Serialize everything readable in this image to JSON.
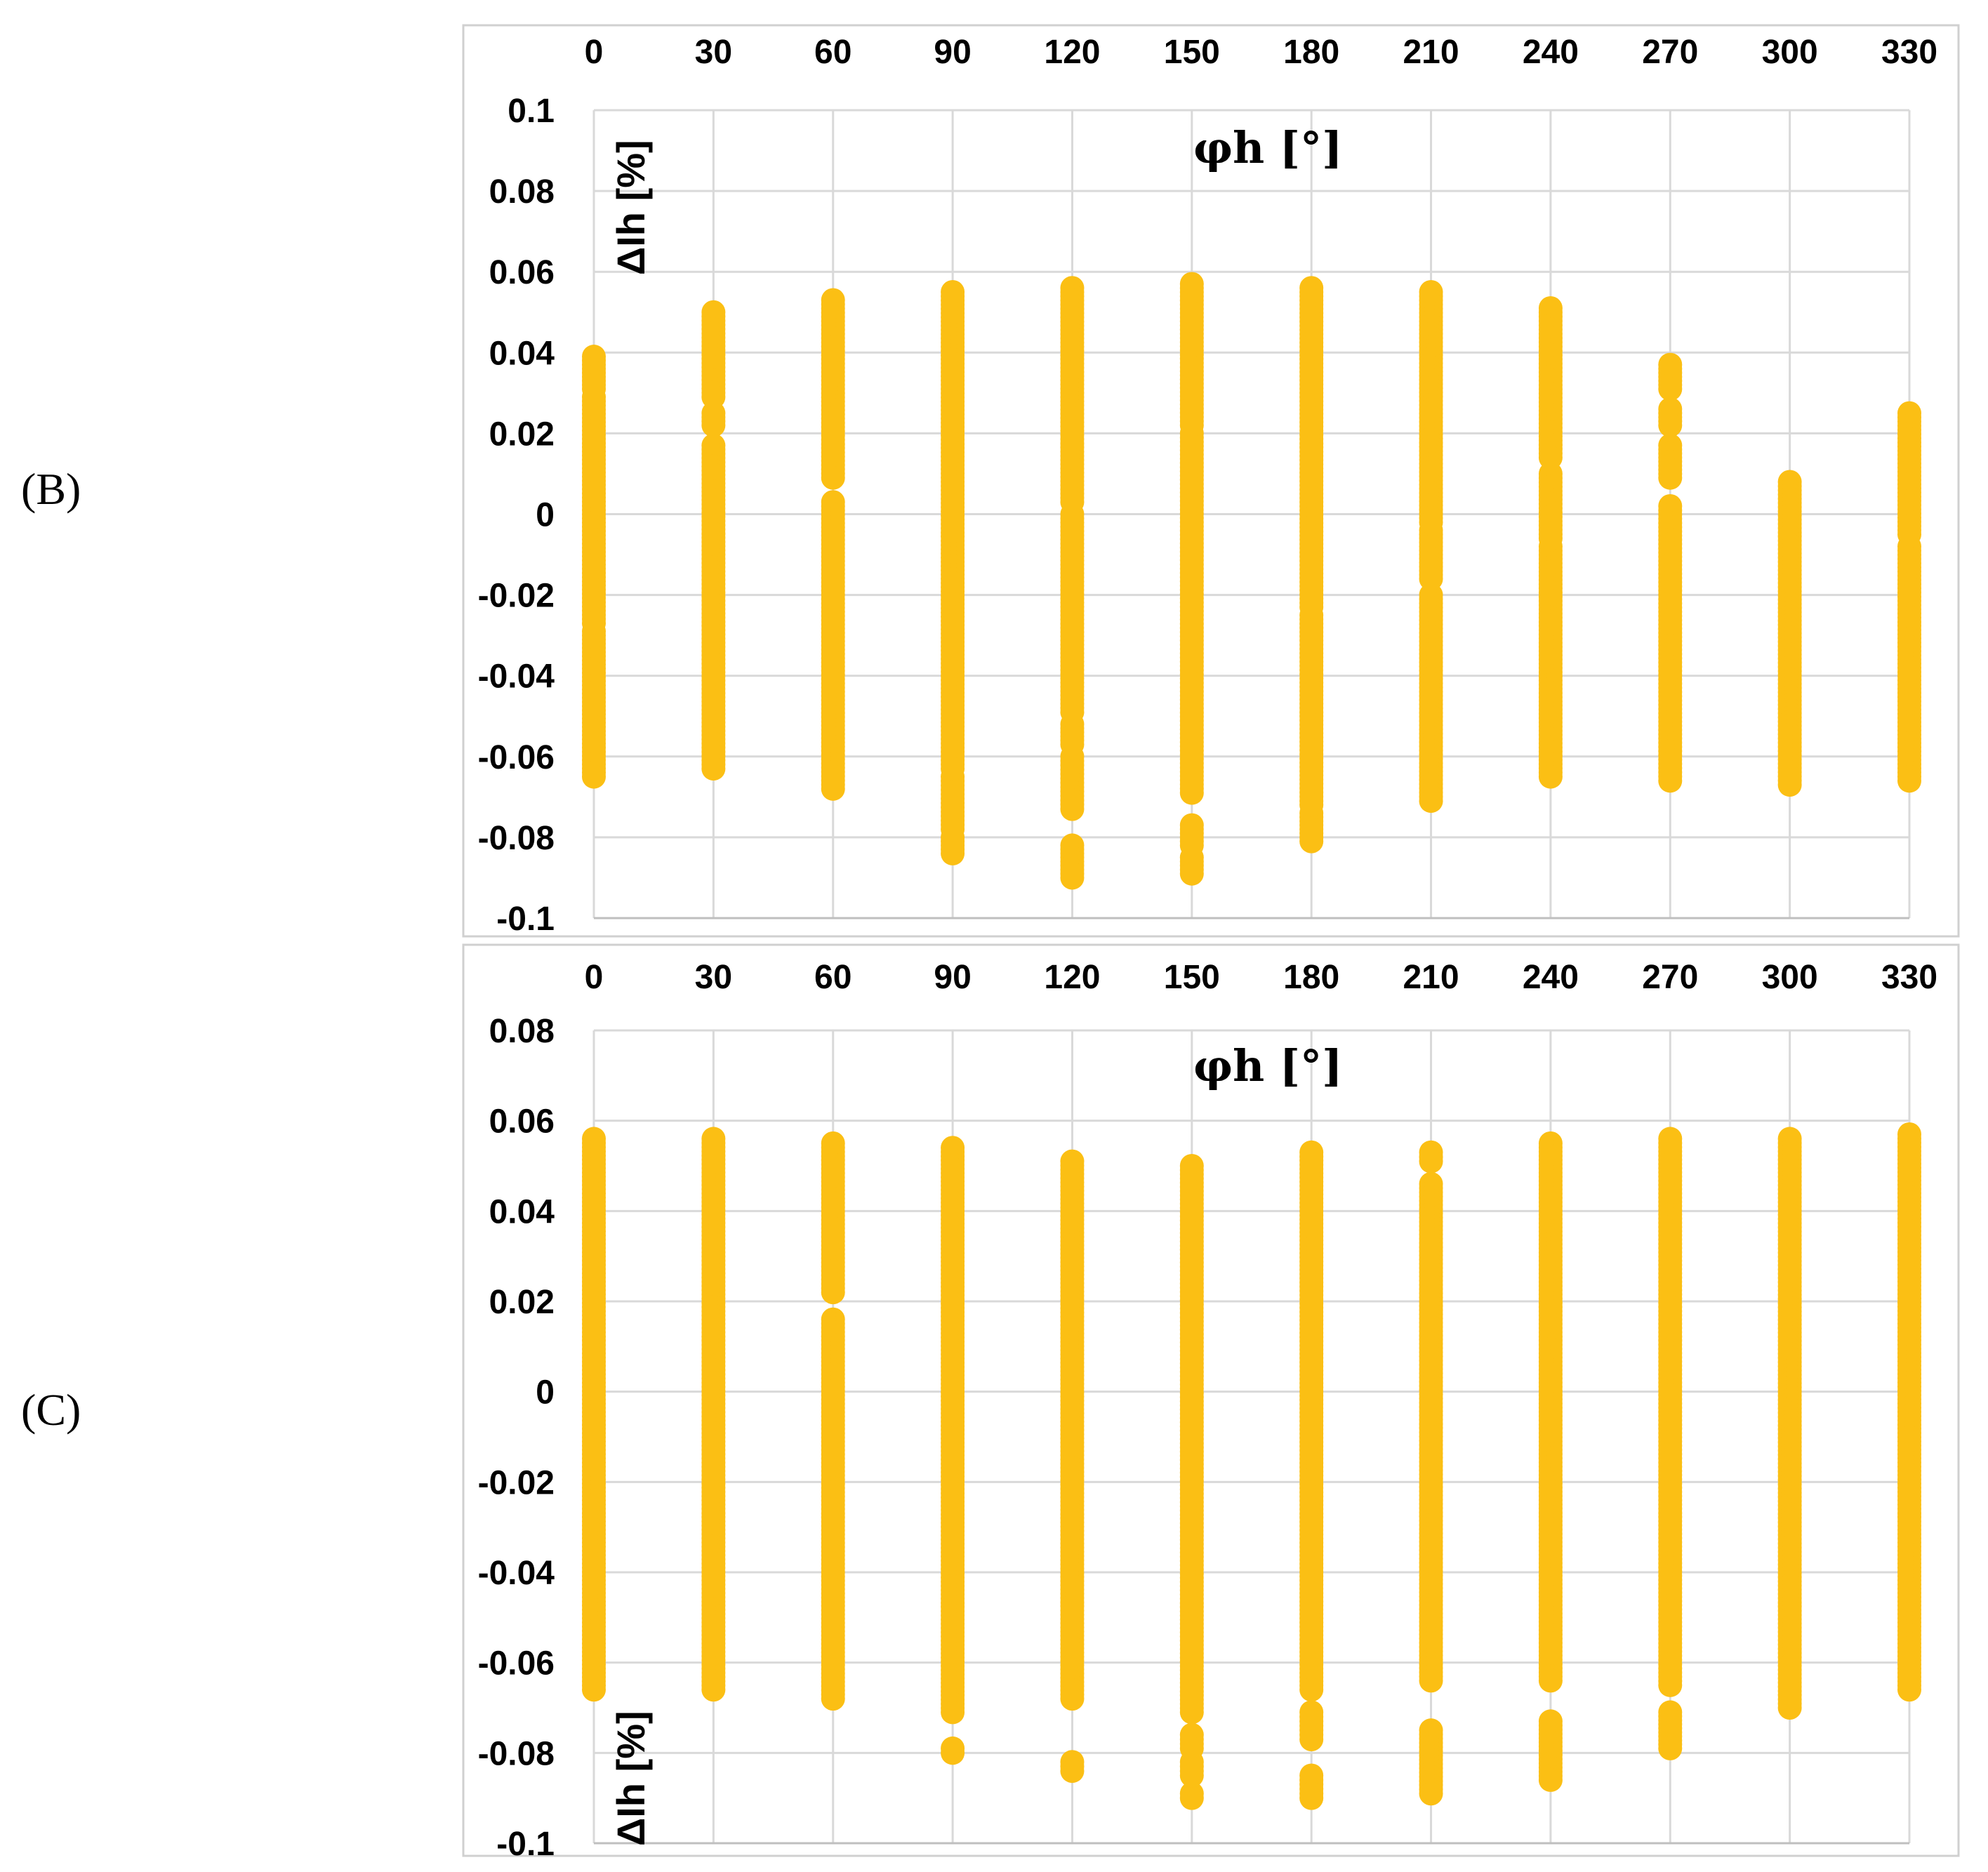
{
  "figure": {
    "panels": [
      {
        "label": "(B)"
      },
      {
        "label": "(C)"
      }
    ]
  },
  "colors": {
    "marker": "#fbbf14",
    "grid": "#d9d9d9",
    "frame": "#d0d0d0"
  },
  "chart_data": [
    {
      "type": "scatter",
      "panel_label": "(B)",
      "title": "",
      "xlabel": "φh [°]",
      "ylabel": "ΔIh [%]",
      "x_ticks": [
        0,
        30,
        60,
        90,
        120,
        150,
        180,
        210,
        240,
        270,
        300,
        330
      ],
      "x_tick_labels": [
        "0",
        "30",
        "60",
        "90",
        "120",
        "150",
        "180",
        "210",
        "240",
        "270",
        "300",
        "330"
      ],
      "y_tick_labels": [
        "0.1",
        "0.08",
        "0.06",
        "0.04",
        "0.02",
        "0",
        "-0.02",
        "-0.04",
        "-0.06",
        "-0.08",
        "-0.1"
      ],
      "xlim": [
        0,
        330
      ],
      "ylim": [
        -0.1,
        0.1
      ],
      "x_axis_position": "top",
      "grid": true,
      "series": [
        {
          "x": 0,
          "runs": [
            [
              -0.065,
              -0.029
            ],
            [
              -0.027,
              0.029
            ],
            [
              0.031,
              0.039
            ]
          ]
        },
        {
          "x": 30,
          "runs": [
            [
              -0.063,
              0.017
            ],
            [
              0.022,
              0.025
            ],
            [
              0.029,
              0.05
            ]
          ]
        },
        {
          "x": 60,
          "runs": [
            [
              -0.068,
              0.003
            ],
            [
              0.009,
              0.053
            ]
          ]
        },
        {
          "x": 90,
          "runs": [
            [
              -0.084,
              -0.08
            ],
            [
              -0.078,
              -0.065
            ],
            [
              -0.063,
              0.055
            ]
          ]
        },
        {
          "x": 120,
          "runs": [
            [
              -0.09,
              -0.082
            ],
            [
              -0.073,
              -0.06
            ],
            [
              -0.057,
              -0.052
            ],
            [
              -0.049,
              0.0
            ],
            [
              0.003,
              0.056
            ]
          ]
        },
        {
          "x": 150,
          "runs": [
            [
              -0.089,
              -0.085
            ],
            [
              -0.082,
              -0.077
            ],
            [
              -0.069,
              0.02
            ],
            [
              0.022,
              0.057
            ]
          ]
        },
        {
          "x": 180,
          "runs": [
            [
              -0.081,
              -0.074
            ],
            [
              -0.072,
              -0.025
            ],
            [
              -0.023,
              0.056
            ]
          ]
        },
        {
          "x": 210,
          "runs": [
            [
              -0.071,
              -0.02
            ],
            [
              -0.016,
              -0.004
            ],
            [
              -0.002,
              0.055
            ]
          ]
        },
        {
          "x": 240,
          "runs": [
            [
              -0.065,
              -0.008
            ],
            [
              -0.006,
              0.01
            ],
            [
              0.014,
              0.051
            ]
          ]
        },
        {
          "x": 270,
          "runs": [
            [
              -0.066,
              0.002
            ],
            [
              0.009,
              0.017
            ],
            [
              0.022,
              0.026
            ],
            [
              0.031,
              0.037
            ]
          ]
        },
        {
          "x": 300,
          "runs": [
            [
              -0.067,
              0.008
            ]
          ]
        },
        {
          "x": 330,
          "runs": [
            [
              -0.066,
              -0.008
            ],
            [
              -0.005,
              0.025
            ]
          ]
        }
      ]
    },
    {
      "type": "scatter",
      "panel_label": "(C)",
      "title": "",
      "xlabel": "φh [°]",
      "ylabel": "ΔIh [%]",
      "x_ticks": [
        0,
        30,
        60,
        90,
        120,
        150,
        180,
        210,
        240,
        270,
        300,
        330
      ],
      "x_tick_labels": [
        "0",
        "30",
        "60",
        "90",
        "120",
        "150",
        "180",
        "210",
        "240",
        "270",
        "300",
        "330"
      ],
      "y_tick_labels": [
        "0.08",
        "0.06",
        "0.04",
        "0.02",
        "0",
        "-0.02",
        "-0.04",
        "-0.06",
        "-0.08",
        "-0.1"
      ],
      "xlim": [
        0,
        330
      ],
      "ylim": [
        -0.1,
        0.08
      ],
      "x_axis_position": "top",
      "grid": true,
      "series": [
        {
          "x": 0,
          "runs": [
            [
              -0.066,
              0.056
            ]
          ]
        },
        {
          "x": 30,
          "runs": [
            [
              -0.066,
              0.056
            ]
          ]
        },
        {
          "x": 60,
          "runs": [
            [
              -0.068,
              0.016
            ],
            [
              0.022,
              0.055
            ]
          ]
        },
        {
          "x": 90,
          "runs": [
            [
              -0.08,
              -0.079
            ],
            [
              -0.071,
              0.054
            ]
          ]
        },
        {
          "x": 120,
          "runs": [
            [
              -0.084,
              -0.082
            ],
            [
              -0.068,
              0.051
            ]
          ]
        },
        {
          "x": 150,
          "runs": [
            [
              -0.09,
              -0.089
            ],
            [
              -0.085,
              -0.082
            ],
            [
              -0.079,
              -0.076
            ],
            [
              -0.071,
              0.05
            ]
          ]
        },
        {
          "x": 180,
          "runs": [
            [
              -0.09,
              -0.085
            ],
            [
              -0.077,
              -0.071
            ],
            [
              -0.066,
              0.053
            ]
          ]
        },
        {
          "x": 210,
          "runs": [
            [
              -0.089,
              -0.075
            ],
            [
              -0.064,
              0.046
            ],
            [
              0.051,
              0.053
            ]
          ]
        },
        {
          "x": 240,
          "runs": [
            [
              -0.086,
              -0.073
            ],
            [
              -0.064,
              0.055
            ]
          ]
        },
        {
          "x": 270,
          "runs": [
            [
              -0.079,
              -0.071
            ],
            [
              -0.065,
              0.056
            ]
          ]
        },
        {
          "x": 300,
          "runs": [
            [
              -0.07,
              0.056
            ]
          ]
        },
        {
          "x": 330,
          "runs": [
            [
              -0.066,
              0.057
            ]
          ]
        }
      ]
    }
  ]
}
